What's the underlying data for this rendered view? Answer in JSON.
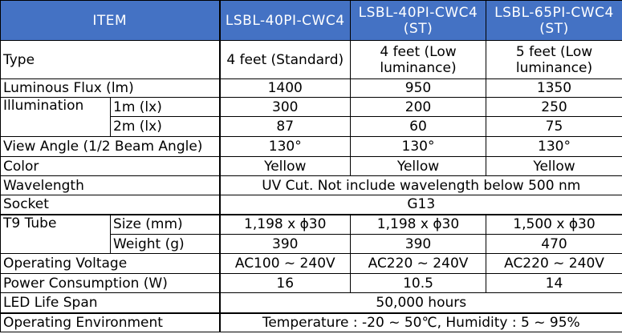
{
  "header": {
    "item": "ITEM",
    "models": [
      "LSBL-40PI-CWC4",
      "LSBL-40PI-CWC4 (ST)",
      "LSBL-65PI-CWC4 (ST)"
    ]
  },
  "rows": {
    "type": {
      "label": "Type",
      "values": [
        "4 feet (Standard)",
        "4 feet (Low luminance)",
        "5 feet (Low luminance)"
      ]
    },
    "flux": {
      "label": "Luminous Flux (lm)",
      "values": [
        "1400",
        "950",
        "1350"
      ]
    },
    "illum": {
      "label": "Illumination",
      "sub1": "1m (lx)",
      "values1": [
        "300",
        "200",
        "250"
      ],
      "sub2": "2m (lx)",
      "values2": [
        "87",
        "60",
        "75"
      ]
    },
    "angle": {
      "label": "View Angle (1/2 Beam Angle)",
      "values": [
        "130°",
        "130°",
        "130°"
      ]
    },
    "color": {
      "label": "Color",
      "values": [
        "Yellow",
        "Yellow",
        "Yellow"
      ]
    },
    "wavelength": {
      "label": "Wavelength",
      "value": "UV Cut.  Not include wavelength below 500 nm"
    },
    "socket": {
      "label": "Socket",
      "value": "G13"
    },
    "tube": {
      "label": "T9 Tube",
      "sub1": "Size (mm)",
      "values1": [
        "1,198 x ϕ30",
        "1,198 x ϕ30",
        "1,500 x ϕ30"
      ],
      "sub2": "Weight (g)",
      "values2": [
        "390",
        "390",
        "470"
      ]
    },
    "voltage": {
      "label": "Operating Voltage",
      "values": [
        "AC100 ~ 240V",
        "AC220 ~ 240V",
        "AC220 ~ 240V"
      ]
    },
    "power": {
      "label": "Power Consumption (W)",
      "values": [
        "16",
        "10.5",
        "14"
      ]
    },
    "life": {
      "label": "LED Life Span",
      "value": "50,000 hours"
    },
    "env": {
      "label": "Operating Environment",
      "value": "Temperature : -20 ~ 50℃, Humidity : 5 ~ 95%"
    }
  }
}
